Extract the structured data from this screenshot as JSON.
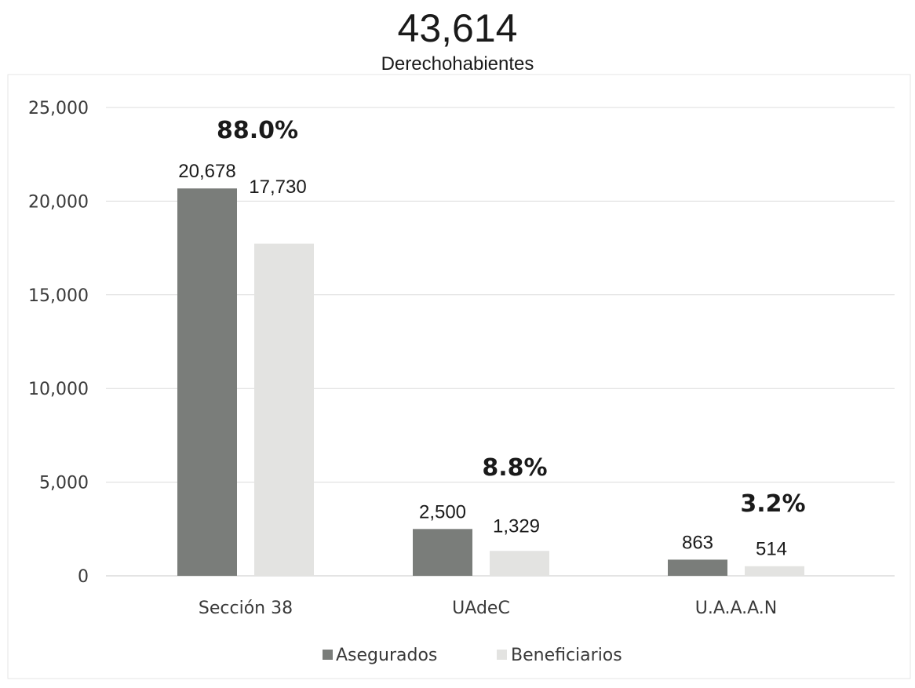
{
  "chart_data": {
    "type": "bar",
    "title": "43,614",
    "subtitle": "Derechohabientes",
    "xlabel": "",
    "ylabel": "",
    "categories": [
      "Sección 38",
      "UAdeC",
      "U.A.A.A.N"
    ],
    "series": [
      {
        "name": "Asegurados",
        "values": [
          20678,
          2500,
          863
        ],
        "labels": [
          "20,678",
          "2,500",
          "863"
        ],
        "color": "#7a7d7a"
      },
      {
        "name": "Beneficiarios",
        "values": [
          17730,
          1329,
          514
        ],
        "labels": [
          "17,730",
          "1,329",
          "514"
        ],
        "color": "#e3e3e1"
      }
    ],
    "annotations": [
      "88.0%",
      "8.8%",
      "3.2%"
    ],
    "ylim": [
      0,
      25000
    ],
    "yticks": [
      0,
      5000,
      10000,
      15000,
      20000,
      25000
    ],
    "ytick_labels": [
      "0",
      "5,000",
      "10,000",
      "15,000",
      "20,000",
      "25,000"
    ],
    "grid": true,
    "legend_position": "bottom"
  }
}
